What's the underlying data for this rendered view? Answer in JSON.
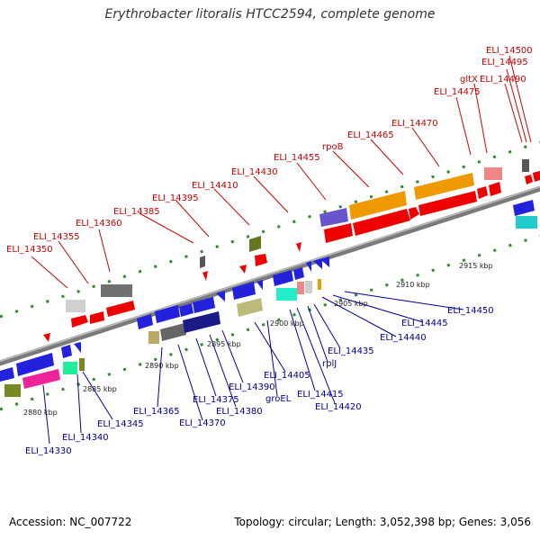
{
  "title": "Erythrobacter litoralis HTCC2594, complete genome",
  "footer": {
    "accession": "Accession: NC_007722",
    "summary": "Topology: circular; Length: 3,052,398 bp; Genes: 3,056"
  },
  "ticks": [
    "2880 kbp",
    "2885 kbp",
    "2890 kbp",
    "2895 kbp",
    "2900 kbp",
    "2905 kbp",
    "2910 kbp",
    "2915 kbp"
  ],
  "top_labels": [
    "ELI_14350",
    "ELI_14355",
    "ELI_14360",
    "ELI_14385",
    "ELI_14395",
    "ELI_14410",
    "ELI_14430",
    "ELI_14455",
    "rpoB",
    "ELI_14465",
    "ELI_14470",
    "ELI_14475",
    "gltX",
    "ELI_14490",
    "ELI_14495",
    "ELI_14500"
  ],
  "bottom_labels": [
    "ELI_14330",
    "ELI_14340",
    "ELI_14345",
    "ELI_14365",
    "ELI_14370",
    "ELI_14375",
    "ELI_14380",
    "ELI_14390",
    "ELI_14405",
    "groEL",
    "ELI_14415",
    "ELI_14420",
    "rplJ",
    "ELI_14435",
    "ELI_14440",
    "ELI_14445",
    "ELI_14450"
  ],
  "colors": {
    "top_label": "#cc0000",
    "bottom_label": "#000099",
    "backbone": "#888888",
    "dots": "#2e8b2e"
  }
}
